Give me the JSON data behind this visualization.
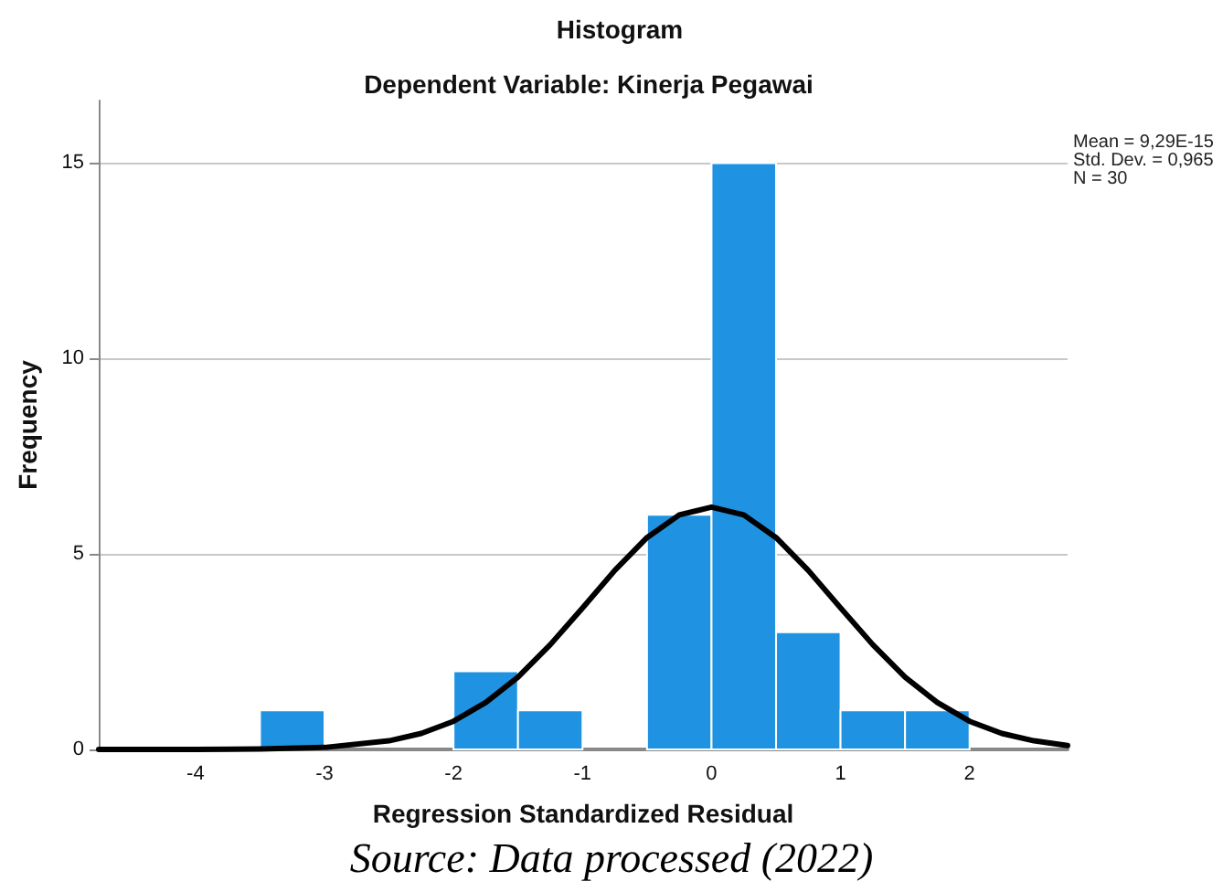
{
  "chart_data": {
    "type": "histogram",
    "title": "Histogram",
    "subtitle": "Dependent Variable: Kinerja Pegawai",
    "xlabel": "Regression Standardized Residual",
    "ylabel": "Frequency",
    "annotations": [
      "Mean = 9,29E-15",
      "Std. Dev. = 0,965",
      "N = 30",
      "Source: Data processed (2022)"
    ],
    "bins": [
      -3.5,
      -3,
      -2.5,
      -2,
      -1.5,
      -1,
      -0.5,
      0,
      0.5,
      1,
      1.5,
      2
    ],
    "values": [
      1,
      0,
      0,
      2,
      1,
      0,
      6,
      15,
      3,
      1,
      1
    ],
    "color": "#1f93e2",
    "series": [
      {
        "type": "line",
        "color": "#000000",
        "x": [
          -4.75,
          -4,
          -3.5,
          -3,
          -2.5,
          -2.25,
          -2,
          -1.75,
          -1.5,
          -1.25,
          -1,
          -0.75,
          -0.5,
          -0.25,
          0,
          0.25,
          0.5,
          0.75,
          1,
          1.25,
          1.5,
          1.75,
          2,
          2.25,
          2.5,
          2.76
        ],
        "values": [
          0,
          0,
          0.01,
          0.05,
          0.22,
          0.41,
          0.72,
          1.2,
          1.85,
          2.68,
          3.62,
          4.58,
          5.42,
          6.0,
          6.2,
          6.0,
          5.42,
          4.58,
          3.62,
          2.68,
          1.85,
          1.2,
          0.72,
          0.41,
          0.22,
          0.1
        ]
      }
    ],
    "xlim": [
      -4.75,
      2.76
    ],
    "xticks": [
      -4,
      -3,
      -2,
      -1,
      0,
      1,
      2
    ],
    "ylim": [
      0,
      16.6
    ],
    "yticks": [
      0,
      5,
      10,
      15
    ],
    "grid": "y",
    "marker": "none",
    "line_style": "solid"
  }
}
